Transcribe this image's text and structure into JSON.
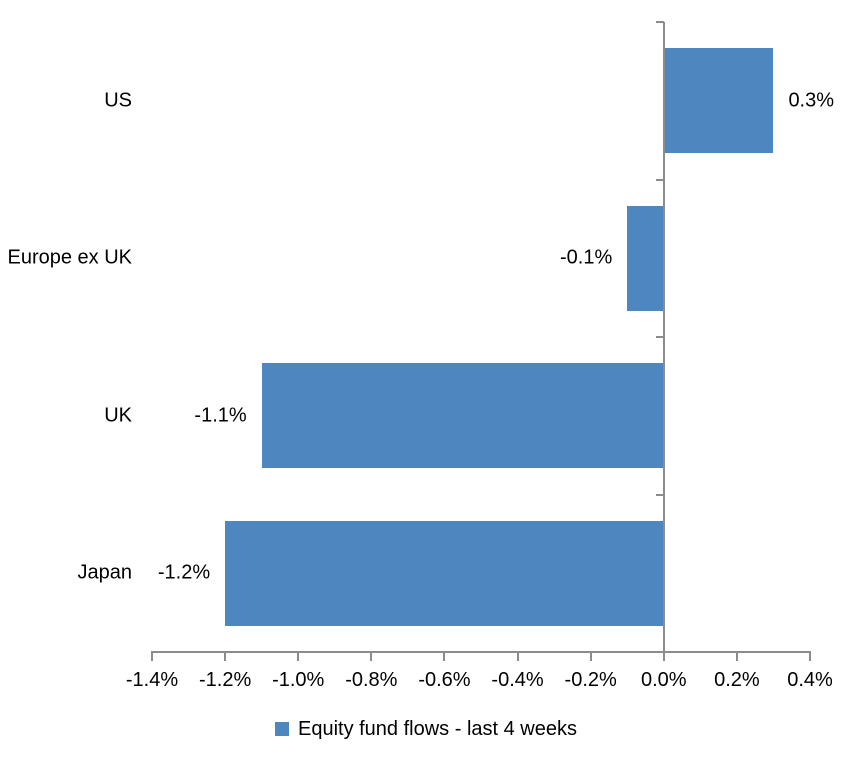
{
  "chart_data": {
    "type": "bar",
    "orientation": "horizontal",
    "title": "",
    "categories": [
      "US",
      "Europe ex UK",
      "UK",
      "Japan"
    ],
    "values": [
      0.3,
      -0.1,
      -1.1,
      -1.2
    ],
    "value_labels": [
      "0.3%",
      "-0.1%",
      "-1.1%",
      "-1.2%"
    ],
    "series_name": "Equity fund flows - last 4 weeks",
    "xlabel": "",
    "ylabel": "",
    "xlim": [
      -1.4,
      0.4
    ],
    "x_ticks": [
      -1.4,
      -1.2,
      -1.0,
      -0.8,
      -0.6,
      -0.4,
      -0.2,
      0.0,
      0.2,
      0.4
    ],
    "x_tick_labels": [
      "-1.4%",
      "-1.2%",
      "-1.0%",
      "-0.8%",
      "-0.6%",
      "-0.4%",
      "-0.2%",
      "0.0%",
      "0.2%",
      "0.4%"
    ],
    "grid": false,
    "legend_position": "bottom-center",
    "bar_color": "#4E86C0",
    "axis_color": "#8C8C8C",
    "text_color": "#000000",
    "background_color": "#FFFFFF"
  },
  "legend": {
    "items": [
      {
        "label": "Equity fund flows - last 4 weeks",
        "color": "#4E86C0"
      }
    ]
  }
}
